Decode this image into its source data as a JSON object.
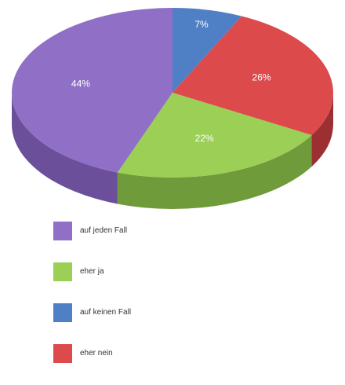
{
  "chart_data": {
    "type": "pie",
    "title": "",
    "slices": [
      {
        "label": "auf keinen Fall",
        "value": 7,
        "value_label": "7%",
        "color": "#4f80c6",
        "side_color": "#36598c"
      },
      {
        "label": "eher nein",
        "value": 26,
        "value_label": "26%",
        "color": "#dc4a4c",
        "side_color": "#9c2f31"
      },
      {
        "label": "eher ja",
        "value": 22,
        "value_label": "22%",
        "color": "#9bcf55",
        "side_color": "#6f9b3a"
      },
      {
        "label": "auf jeden Fall",
        "value": 44,
        "value_label": "44%",
        "color": "#9070c6",
        "side_color": "#6b4f9a"
      }
    ],
    "legend": {
      "placement": "bottom",
      "items": [
        {
          "label": "auf jeden Fall",
          "color": "#9070c6"
        },
        {
          "label": "eher ja",
          "color": "#9bcf55"
        },
        {
          "label": "auf keinen Fall",
          "color": "#4f80c6"
        },
        {
          "label": "eher nein",
          "color": "#dc4a4c"
        }
      ]
    }
  }
}
